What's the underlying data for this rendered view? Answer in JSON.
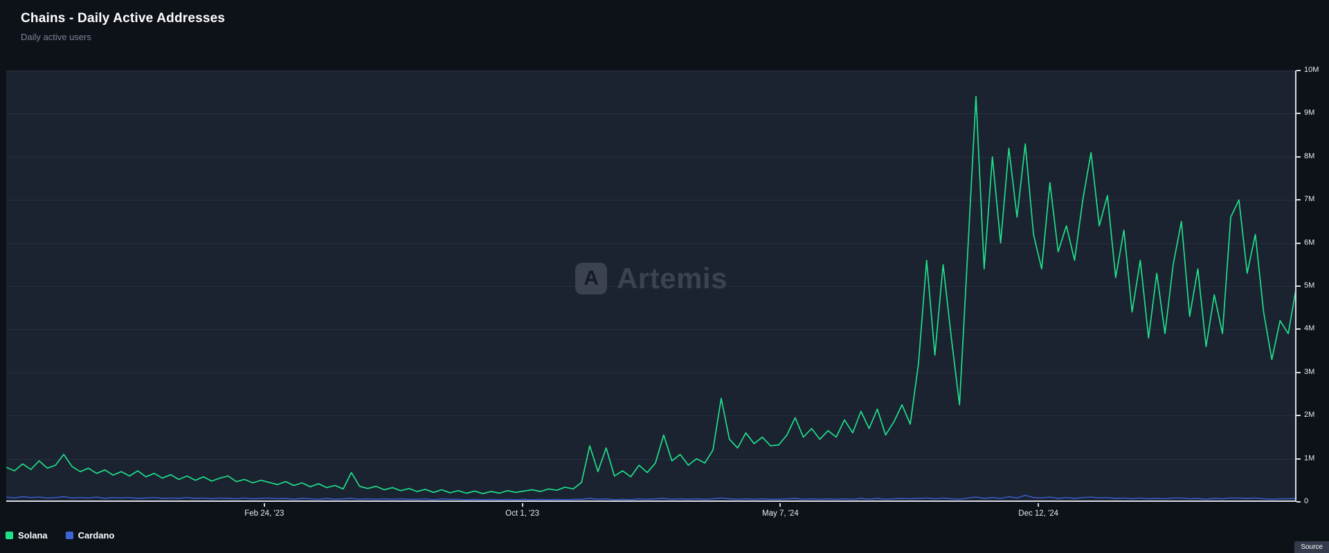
{
  "header": {
    "title": "Chains - Daily Active Addresses",
    "subtitle": "Daily active users"
  },
  "watermark": {
    "text": "Artemis",
    "logo_letter": "A"
  },
  "source_label": "Source",
  "colors": {
    "solana": "#1fe08a",
    "cardano": "#3c63d8",
    "grid": "#272e3e",
    "axis": "#d9dce4",
    "plot_bg": "#1b2230",
    "page_bg": "#0d1118",
    "watermark": "#3b4252"
  },
  "legend": [
    {
      "label": "Solana",
      "color": "#1fe08a"
    },
    {
      "label": "Cardano",
      "color": "#3c63d8"
    }
  ],
  "chart_data": {
    "type": "line",
    "title": "Chains - Daily Active Addresses",
    "subtitle": "Daily active users",
    "ylabel": "Daily active addresses",
    "ylim": [
      0,
      10000000
    ],
    "grid": true,
    "legend_position": "bottom-left",
    "y_ticks": [
      {
        "label": "0",
        "value": 0
      },
      {
        "label": "1M",
        "value": 1000000
      },
      {
        "label": "2M",
        "value": 2000000
      },
      {
        "label": "3M",
        "value": 3000000
      },
      {
        "label": "4M",
        "value": 4000000
      },
      {
        "label": "5M",
        "value": 5000000
      },
      {
        "label": "6M",
        "value": 6000000
      },
      {
        "label": "7M",
        "value": 7000000
      },
      {
        "label": "8M",
        "value": 8000000
      },
      {
        "label": "9M",
        "value": 9000000
      },
      {
        "label": "10M",
        "value": 10000000
      }
    ],
    "x_ticks": [
      {
        "label": "Feb 24, '23",
        "pos": 0.2
      },
      {
        "label": "Oct 1, '23",
        "pos": 0.4
      },
      {
        "label": "May 7, '24",
        "pos": 0.6
      },
      {
        "label": "Dec 12, '24",
        "pos": 0.8
      }
    ],
    "x_start_approx": "2022-07",
    "x_end_approx": "2025-07",
    "sampling": "weekly (approx., values estimated from plot)",
    "series": [
      {
        "name": "Solana",
        "color": "#1fe08a",
        "unit": "millions",
        "values_millions": [
          0.8,
          0.72,
          0.88,
          0.75,
          0.95,
          0.78,
          0.85,
          1.1,
          0.82,
          0.7,
          0.78,
          0.66,
          0.74,
          0.62,
          0.7,
          0.6,
          0.72,
          0.58,
          0.66,
          0.55,
          0.63,
          0.52,
          0.6,
          0.5,
          0.58,
          0.48,
          0.55,
          0.6,
          0.47,
          0.52,
          0.44,
          0.5,
          0.45,
          0.4,
          0.47,
          0.38,
          0.44,
          0.35,
          0.42,
          0.33,
          0.38,
          0.3,
          0.68,
          0.36,
          0.31,
          0.36,
          0.28,
          0.33,
          0.26,
          0.31,
          0.24,
          0.29,
          0.22,
          0.28,
          0.21,
          0.26,
          0.2,
          0.25,
          0.19,
          0.24,
          0.2,
          0.26,
          0.22,
          0.25,
          0.28,
          0.24,
          0.3,
          0.27,
          0.34,
          0.3,
          0.45,
          1.3,
          0.7,
          1.25,
          0.6,
          0.72,
          0.58,
          0.85,
          0.68,
          0.9,
          1.55,
          0.95,
          1.1,
          0.85,
          1.0,
          0.9,
          1.2,
          2.4,
          1.45,
          1.25,
          1.6,
          1.35,
          1.5,
          1.3,
          1.32,
          1.55,
          1.95,
          1.5,
          1.7,
          1.45,
          1.65,
          1.5,
          1.9,
          1.6,
          2.1,
          1.7,
          2.15,
          1.55,
          1.85,
          2.25,
          1.8,
          3.2,
          5.6,
          3.4,
          5.5,
          3.8,
          2.25,
          5.8,
          9.4,
          5.4,
          8.0,
          6.0,
          8.2,
          6.6,
          8.3,
          6.2,
          5.4,
          7.4,
          5.8,
          6.4,
          5.6,
          7.0,
          8.1,
          6.4,
          7.1,
          5.2,
          6.3,
          4.4,
          5.6,
          3.8,
          5.3,
          3.9,
          5.5,
          6.5,
          4.3,
          5.4,
          3.6,
          4.8,
          3.9,
          6.6,
          7.0,
          5.3,
          6.2,
          4.4,
          3.3,
          4.2,
          3.9,
          5.0
        ]
      },
      {
        "name": "Cardano",
        "color": "#3c63d8",
        "unit": "millions",
        "values_millions": [
          0.11,
          0.09,
          0.12,
          0.1,
          0.11,
          0.09,
          0.1,
          0.12,
          0.09,
          0.1,
          0.09,
          0.11,
          0.08,
          0.1,
          0.09,
          0.1,
          0.08,
          0.09,
          0.1,
          0.08,
          0.09,
          0.08,
          0.1,
          0.08,
          0.09,
          0.07,
          0.09,
          0.08,
          0.07,
          0.09,
          0.07,
          0.08,
          0.09,
          0.07,
          0.08,
          0.06,
          0.08,
          0.07,
          0.06,
          0.08,
          0.06,
          0.07,
          0.08,
          0.06,
          0.07,
          0.06,
          0.07,
          0.06,
          0.07,
          0.06,
          0.06,
          0.07,
          0.05,
          0.07,
          0.06,
          0.06,
          0.05,
          0.06,
          0.05,
          0.06,
          0.05,
          0.06,
          0.05,
          0.06,
          0.05,
          0.06,
          0.05,
          0.06,
          0.05,
          0.06,
          0.06,
          0.08,
          0.06,
          0.07,
          0.05,
          0.06,
          0.05,
          0.07,
          0.06,
          0.07,
          0.08,
          0.06,
          0.07,
          0.06,
          0.07,
          0.06,
          0.07,
          0.09,
          0.07,
          0.06,
          0.07,
          0.06,
          0.07,
          0.06,
          0.06,
          0.07,
          0.08,
          0.06,
          0.07,
          0.06,
          0.07,
          0.06,
          0.07,
          0.06,
          0.08,
          0.06,
          0.08,
          0.06,
          0.07,
          0.08,
          0.07,
          0.08,
          0.09,
          0.07,
          0.09,
          0.07,
          0.06,
          0.09,
          0.11,
          0.08,
          0.1,
          0.08,
          0.12,
          0.09,
          0.15,
          0.1,
          0.09,
          0.11,
          0.08,
          0.1,
          0.08,
          0.1,
          0.11,
          0.09,
          0.1,
          0.08,
          0.09,
          0.07,
          0.09,
          0.07,
          0.08,
          0.07,
          0.09,
          0.09,
          0.07,
          0.08,
          0.06,
          0.08,
          0.07,
          0.09,
          0.09,
          0.08,
          0.09,
          0.07,
          0.06,
          0.07,
          0.07,
          0.08
        ]
      }
    ]
  }
}
